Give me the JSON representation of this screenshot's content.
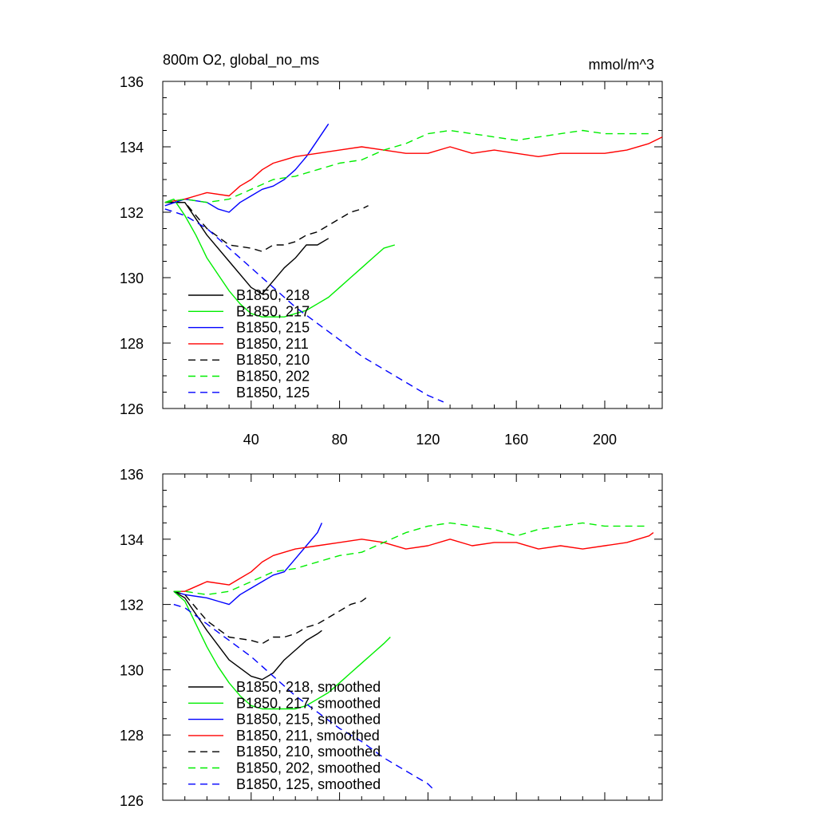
{
  "chart_data": [
    {
      "type": "line",
      "title": "800m O2, global_no_ms",
      "units": "mmol/m^3",
      "xlim": [
        0,
        226
      ],
      "ylim": [
        126,
        136
      ],
      "xticks": [
        40,
        80,
        120,
        160,
        200
      ],
      "yticks": [
        126,
        128,
        130,
        132,
        134,
        136
      ],
      "show_x_tick_labels": true,
      "series": [
        {
          "name": "B1850, 218",
          "color": "#000000",
          "dash": "solid",
          "x": [
            1,
            10,
            20,
            30,
            40,
            45,
            50,
            55,
            60,
            65,
            70,
            75
          ],
          "y": [
            132.3,
            132.3,
            131.3,
            130.5,
            129.7,
            129.5,
            129.9,
            130.3,
            130.6,
            131.0,
            131.0,
            131.2
          ]
        },
        {
          "name": "B1850, 217",
          "color": "#00ee00",
          "dash": "solid",
          "x": [
            1,
            5,
            10,
            15,
            20,
            25,
            30,
            35,
            40,
            45,
            50,
            55,
            60,
            65,
            70,
            75,
            80,
            85,
            90,
            95,
            100,
            105
          ],
          "y": [
            132.3,
            132.4,
            131.9,
            131.3,
            130.6,
            130.1,
            129.6,
            129.2,
            128.9,
            128.8,
            128.8,
            128.8,
            128.9,
            129.0,
            129.2,
            129.4,
            129.7,
            130.0,
            130.3,
            130.6,
            130.9,
            131.0
          ]
        },
        {
          "name": "B1850, 215",
          "color": "#0000ff",
          "dash": "solid",
          "x": [
            1,
            10,
            20,
            25,
            30,
            35,
            40,
            45,
            50,
            55,
            60,
            65,
            70,
            75
          ],
          "y": [
            132.2,
            132.4,
            132.3,
            132.1,
            132.0,
            132.3,
            132.5,
            132.7,
            132.8,
            133.0,
            133.3,
            133.7,
            134.2,
            134.7
          ]
        },
        {
          "name": "B1850, 211",
          "color": "#ff0000",
          "dash": "solid",
          "x": [
            1,
            10,
            20,
            30,
            35,
            40,
            45,
            50,
            55,
            60,
            70,
            80,
            90,
            100,
            110,
            120,
            130,
            140,
            150,
            160,
            170,
            180,
            190,
            200,
            210,
            220,
            226
          ],
          "y": [
            132.3,
            132.4,
            132.6,
            132.5,
            132.8,
            133.0,
            133.3,
            133.5,
            133.6,
            133.7,
            133.8,
            133.9,
            134.0,
            133.9,
            133.8,
            133.8,
            134.0,
            133.8,
            133.9,
            133.8,
            133.7,
            133.8,
            133.8,
            133.8,
            133.9,
            134.1,
            134.3
          ]
        },
        {
          "name": "B1850, 210",
          "color": "#000000",
          "dash": "dashed",
          "x": [
            1,
            10,
            20,
            30,
            40,
            45,
            50,
            55,
            60,
            65,
            70,
            75,
            80,
            85,
            90,
            93
          ],
          "y": [
            132.3,
            132.3,
            131.5,
            131.0,
            130.9,
            130.8,
            131.0,
            131.0,
            131.1,
            131.3,
            131.4,
            131.6,
            131.8,
            132.0,
            132.1,
            132.2
          ]
        },
        {
          "name": "B1850, 202",
          "color": "#00ee00",
          "dash": "dashed",
          "x": [
            1,
            10,
            20,
            30,
            40,
            50,
            60,
            70,
            80,
            90,
            100,
            110,
            120,
            130,
            140,
            150,
            160,
            170,
            180,
            190,
            200,
            210,
            220
          ],
          "y": [
            132.3,
            132.4,
            132.3,
            132.4,
            132.7,
            133.0,
            133.1,
            133.3,
            133.5,
            133.6,
            133.9,
            134.1,
            134.4,
            134.5,
            134.4,
            134.3,
            134.2,
            134.3,
            134.4,
            134.5,
            134.4,
            134.4,
            134.4
          ]
        },
        {
          "name": "B1850, 125",
          "color": "#0000ff",
          "dash": "dashed",
          "x": [
            1,
            10,
            20,
            30,
            40,
            50,
            60,
            70,
            80,
            90,
            100,
            110,
            120,
            127
          ],
          "y": [
            132.1,
            131.9,
            131.5,
            130.9,
            130.3,
            129.7,
            129.1,
            128.6,
            128.1,
            127.6,
            127.2,
            126.8,
            126.4,
            126.2
          ]
        }
      ]
    },
    {
      "type": "line",
      "title": "",
      "units": "",
      "xlim": [
        0,
        226
      ],
      "ylim": [
        126,
        136
      ],
      "xticks": [
        40,
        80,
        120,
        160,
        200
      ],
      "yticks": [
        126,
        128,
        130,
        132,
        134,
        136
      ],
      "show_x_tick_labels": false,
      "series": [
        {
          "name": "B1850, 218, smoothed",
          "color": "#000000",
          "dash": "solid",
          "x": [
            5,
            10,
            20,
            30,
            40,
            45,
            50,
            55,
            60,
            65,
            70,
            72
          ],
          "y": [
            132.4,
            132.2,
            131.2,
            130.3,
            129.8,
            129.7,
            129.9,
            130.3,
            130.6,
            130.9,
            131.1,
            131.2
          ]
        },
        {
          "name": "B1850, 217, smoothed",
          "color": "#00ee00",
          "dash": "solid",
          "x": [
            5,
            10,
            15,
            20,
            25,
            30,
            35,
            40,
            45,
            50,
            55,
            60,
            65,
            70,
            75,
            80,
            85,
            90,
            95,
            100,
            103
          ],
          "y": [
            132.4,
            132.1,
            131.4,
            130.7,
            130.1,
            129.6,
            129.2,
            128.9,
            128.8,
            128.8,
            128.8,
            128.8,
            128.9,
            129.1,
            129.3,
            129.6,
            129.9,
            130.2,
            130.5,
            130.8,
            131.0
          ]
        },
        {
          "name": "B1850, 215, smoothed",
          "color": "#0000ff",
          "dash": "solid",
          "x": [
            5,
            10,
            20,
            25,
            30,
            35,
            40,
            45,
            50,
            55,
            60,
            65,
            70,
            72
          ],
          "y": [
            132.4,
            132.3,
            132.2,
            132.1,
            132.0,
            132.3,
            132.5,
            132.7,
            132.9,
            133.0,
            133.4,
            133.8,
            134.2,
            134.5
          ]
        },
        {
          "name": "B1850, 211, smoothed",
          "color": "#ff0000",
          "dash": "solid",
          "x": [
            5,
            10,
            20,
            30,
            35,
            40,
            45,
            50,
            55,
            60,
            70,
            80,
            90,
            100,
            110,
            120,
            130,
            140,
            150,
            160,
            170,
            180,
            190,
            200,
            210,
            220,
            222
          ],
          "y": [
            132.4,
            132.4,
            132.7,
            132.6,
            132.8,
            133.0,
            133.3,
            133.5,
            133.6,
            133.7,
            133.8,
            133.9,
            134.0,
            133.9,
            133.7,
            133.8,
            134.0,
            133.8,
            133.9,
            133.9,
            133.7,
            133.8,
            133.7,
            133.8,
            133.9,
            134.1,
            134.2
          ]
        },
        {
          "name": "B1850, 210, smoothed",
          "color": "#000000",
          "dash": "dashed",
          "x": [
            5,
            10,
            20,
            30,
            40,
            45,
            50,
            55,
            60,
            65,
            70,
            75,
            80,
            85,
            90,
            92
          ],
          "y": [
            132.4,
            132.3,
            131.5,
            131.0,
            130.9,
            130.8,
            131.0,
            131.0,
            131.1,
            131.3,
            131.4,
            131.6,
            131.8,
            132.0,
            132.1,
            132.2
          ]
        },
        {
          "name": "B1850, 202, smoothed",
          "color": "#00ee00",
          "dash": "dashed",
          "x": [
            5,
            10,
            20,
            30,
            40,
            50,
            60,
            70,
            80,
            90,
            100,
            110,
            120,
            130,
            140,
            150,
            160,
            170,
            180,
            190,
            200,
            210,
            218
          ],
          "y": [
            132.4,
            132.4,
            132.3,
            132.4,
            132.7,
            133.0,
            133.1,
            133.3,
            133.5,
            133.6,
            133.9,
            134.2,
            134.4,
            134.5,
            134.4,
            134.3,
            134.1,
            134.3,
            134.4,
            134.5,
            134.4,
            134.4,
            134.4
          ]
        },
        {
          "name": "B1850, 125, smoothed",
          "color": "#0000ff",
          "dash": "dashed",
          "x": [
            5,
            10,
            20,
            30,
            40,
            50,
            60,
            70,
            80,
            90,
            100,
            110,
            120,
            123
          ],
          "y": [
            132.0,
            131.9,
            131.4,
            130.9,
            130.4,
            129.8,
            129.2,
            128.7,
            128.2,
            127.8,
            127.3,
            126.9,
            126.5,
            126.3
          ]
        }
      ]
    }
  ]
}
